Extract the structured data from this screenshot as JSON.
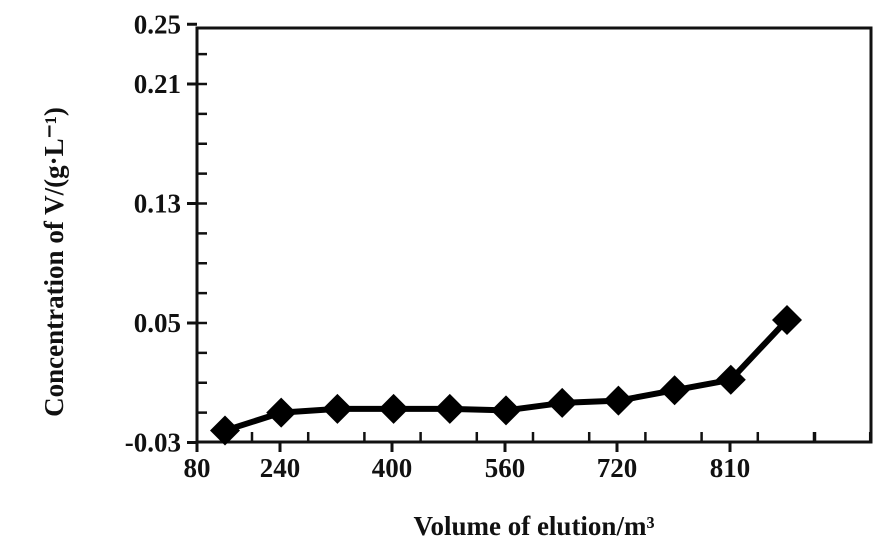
{
  "chart_data": {
    "type": "line",
    "title": "",
    "xlabel": "Volume of elution/m³",
    "ylabel": "Concentration of V/(g·L⁻¹)",
    "x_tick_labels": [
      "80",
      "240",
      "400",
      "560",
      "720",
      "810"
    ],
    "y_tick_labels": [
      "0.25",
      "0.21",
      "0.13",
      "0.05",
      "-0.03"
    ],
    "y_tick_values": [
      0.25,
      0.21,
      0.13,
      0.05,
      -0.03
    ],
    "ylim": [
      -0.03,
      0.25
    ],
    "grid": false,
    "legend": "none",
    "colors": {
      "line": "#000000",
      "marker": "#000000",
      "axis": "#111111"
    },
    "series": [
      {
        "x_positions": [
          1,
          2,
          3,
          4,
          5,
          6,
          7,
          8,
          9,
          10,
          11
        ],
        "values": [
          -0.022,
          -0.01,
          -0.0075,
          -0.0075,
          -0.0075,
          -0.0085,
          -0.0035,
          -0.002,
          0.005,
          0.012,
          0.052
        ]
      }
    ]
  }
}
